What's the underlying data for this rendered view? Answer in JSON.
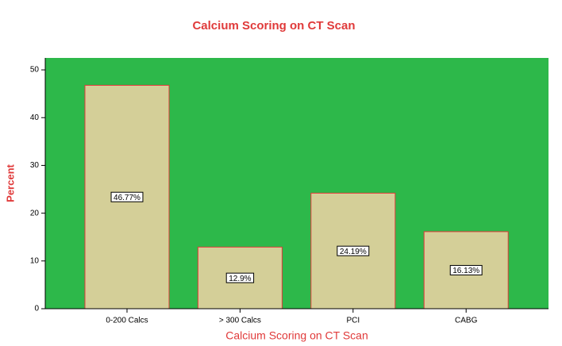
{
  "chart_data": {
    "type": "bar",
    "title": "Calcium Scoring on CT Scan",
    "x_label": "Calcium Scoring on CT Scan",
    "y_label": "Percent",
    "categories": [
      "0-200 Calcs",
      "> 300 Calcs",
      "PCI",
      "CABG"
    ],
    "values": [
      46.77,
      12.9,
      24.19,
      16.13
    ],
    "value_labels": [
      "46.77%",
      "12.9%",
      "24.19%",
      "16.13%"
    ],
    "color": "#d4cf98",
    "edge_color": "#e03a3a",
    "background": "#2db84a",
    "ylim": [
      0,
      52.5
    ],
    "yticks": [
      0,
      10,
      20,
      30,
      40,
      50
    ]
  }
}
